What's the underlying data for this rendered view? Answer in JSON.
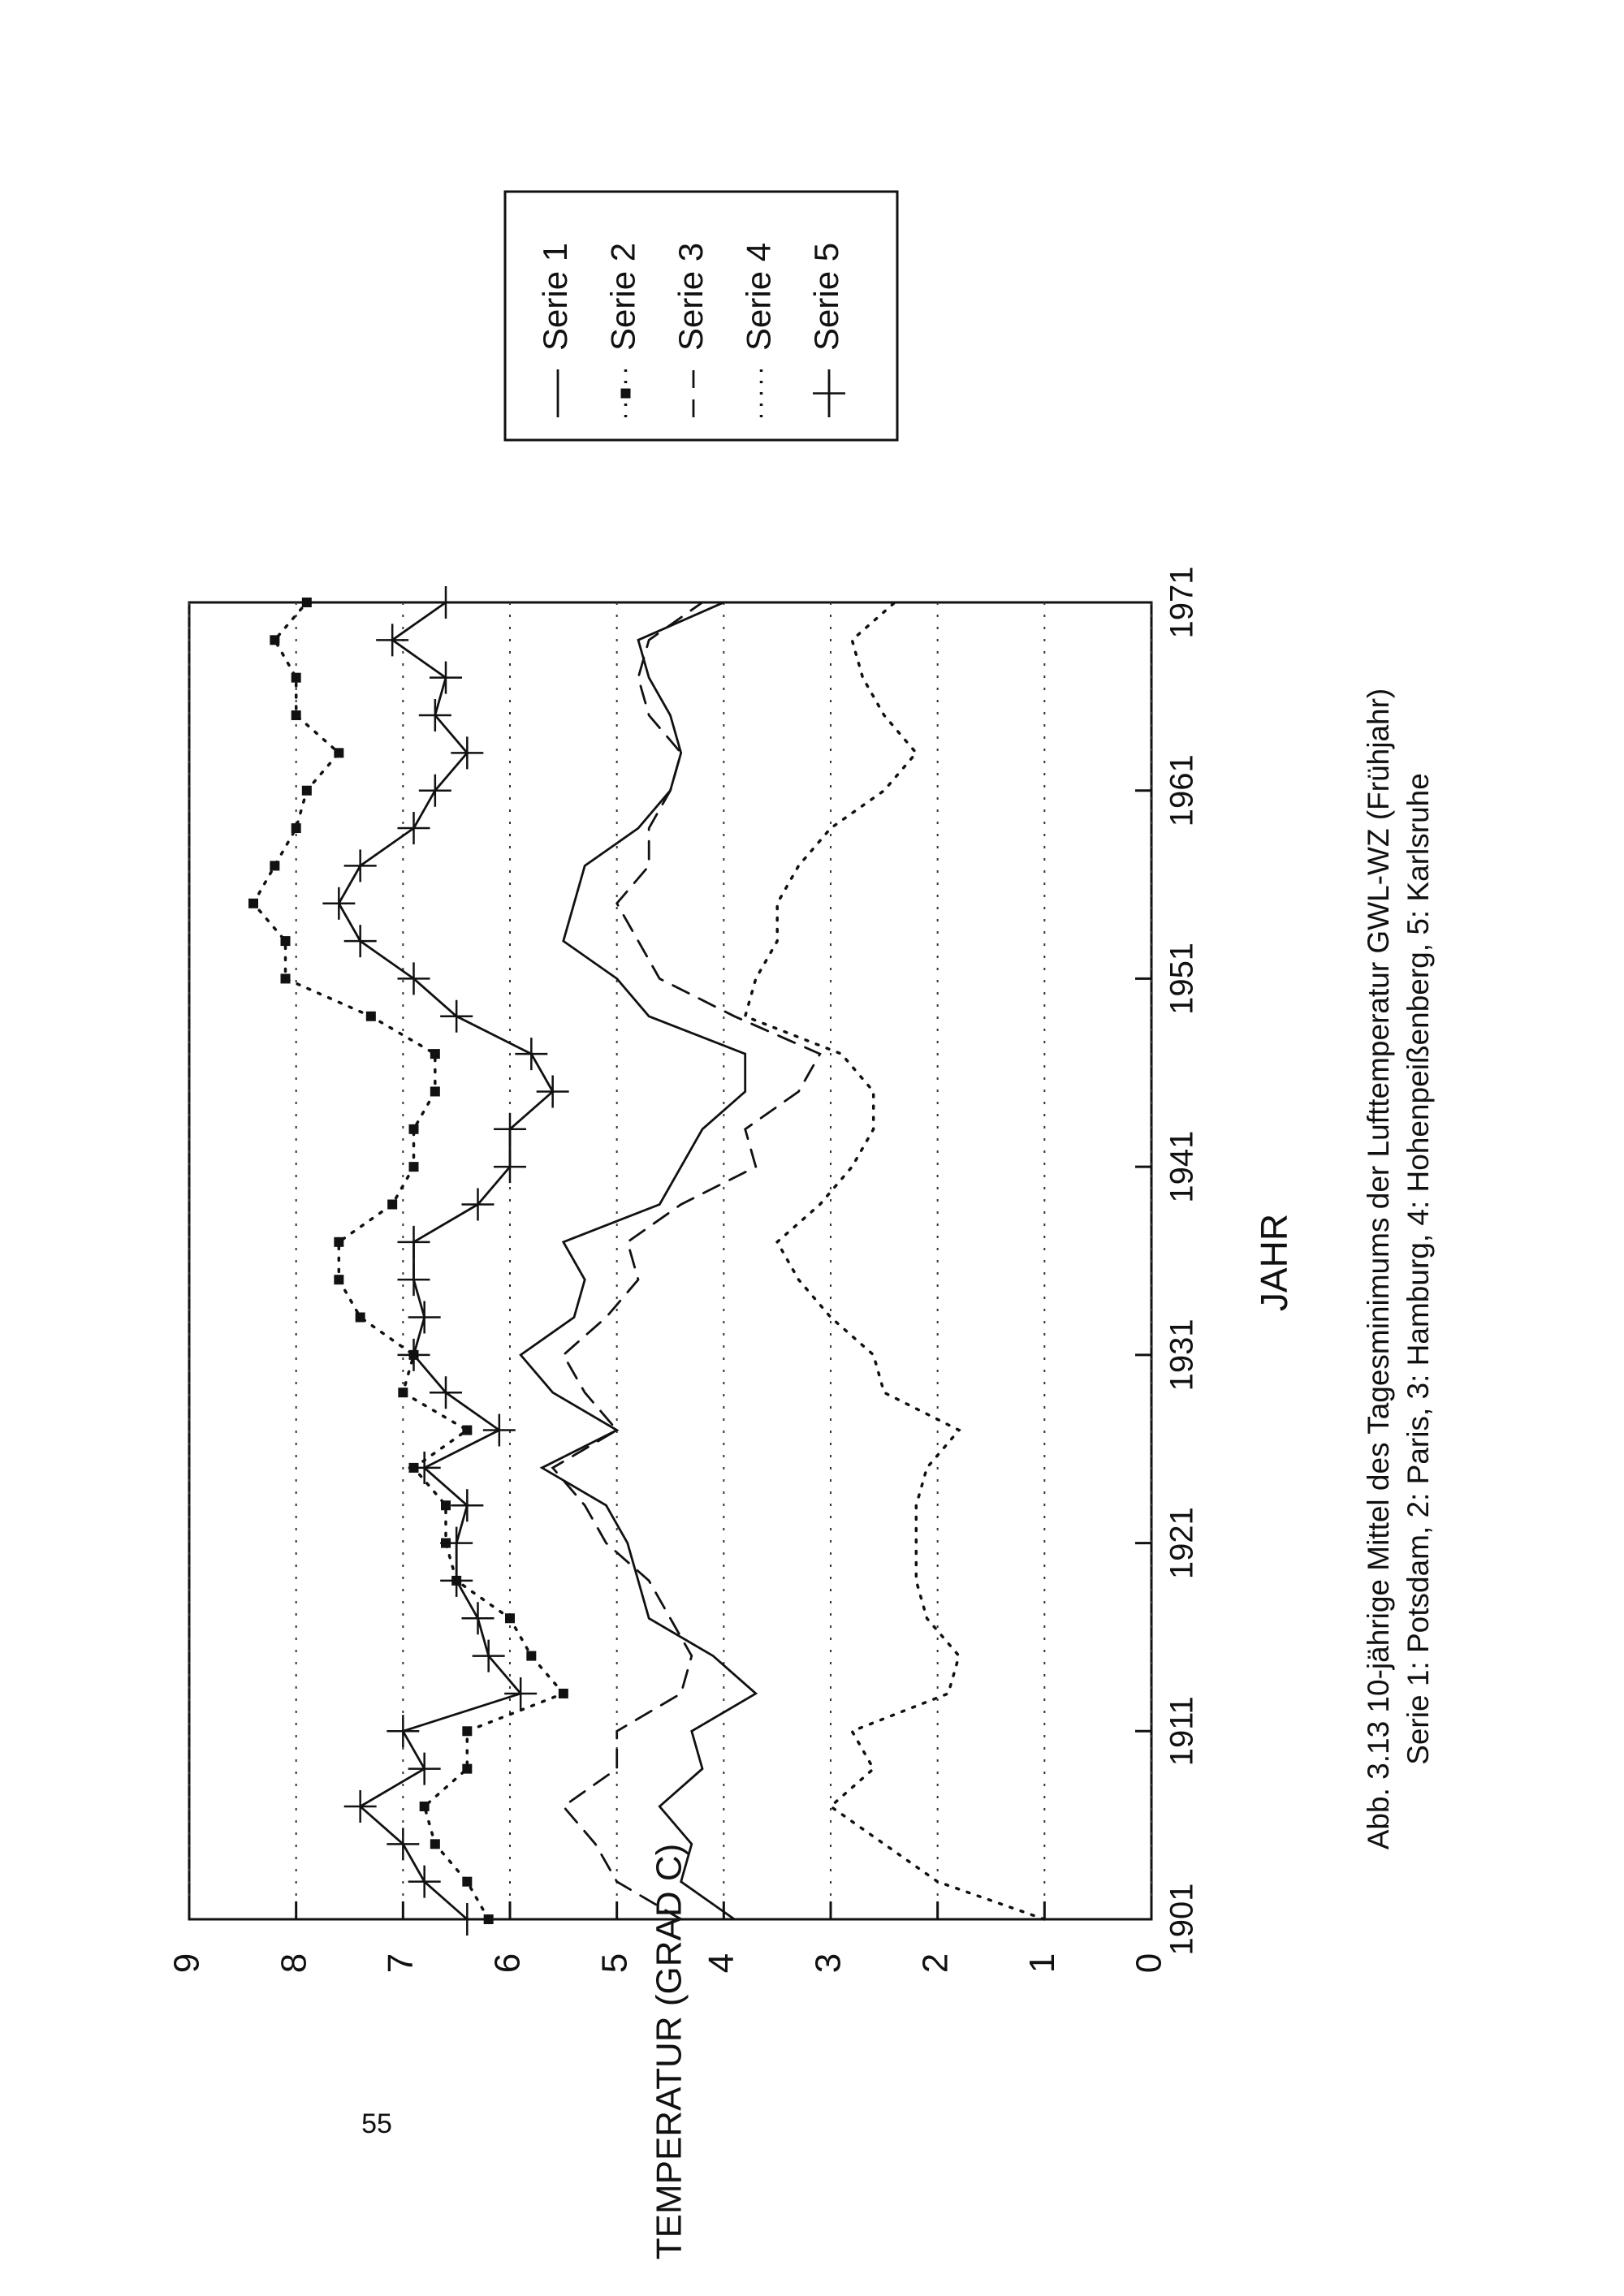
{
  "page_number": "55",
  "chart_data": {
    "type": "line",
    "title": "Abb. 3.13 10-jährige Mittel des Tagesminimums der Lufttemperatur GWL-WZ (Frühjahr)",
    "subtitle": "Serie 1: Potsdam, 2: Paris, 3: Hamburg, 4: Hohenpeißenberg, 5: Karlsruhe",
    "x_label": "JAHR",
    "y_label": "TEMPERATUR (GRAD C)",
    "x": [
      1901,
      1903,
      1905,
      1907,
      1909,
      1911,
      1913,
      1915,
      1917,
      1919,
      1921,
      1923,
      1925,
      1927,
      1929,
      1931,
      1933,
      1935,
      1937,
      1939,
      1941,
      1943,
      1945,
      1947,
      1949,
      1951,
      1953,
      1955,
      1957,
      1959,
      1961,
      1963,
      1965,
      1967,
      1969,
      1971
    ],
    "xlim": [
      1901,
      1971
    ],
    "xticks": [
      1901,
      1911,
      1921,
      1931,
      1941,
      1951,
      1961,
      1971
    ],
    "ylim": [
      0,
      9
    ],
    "yticks": [
      0,
      1,
      2,
      3,
      4,
      5,
      6,
      7,
      8,
      9
    ],
    "grid": true,
    "legend": "upper right",
    "series": [
      {
        "name": "Serie 1",
        "color": "#111111",
        "style": "solid",
        "marker": "none",
        "values": [
          3.9,
          4.4,
          4.3,
          4.6,
          4.2,
          4.3,
          3.7,
          4.1,
          4.7,
          4.8,
          4.9,
          5.1,
          5.7,
          5.0,
          5.6,
          5.9,
          5.4,
          5.3,
          5.5,
          4.6,
          4.4,
          4.2,
          3.8,
          3.8,
          4.7,
          5.0,
          5.5,
          5.4,
          5.3,
          4.8,
          4.5,
          4.4,
          4.5,
          4.7,
          4.8,
          4.0
        ]
      },
      {
        "name": "Serie 2",
        "color": "#111111",
        "style": "dotted",
        "marker": "square",
        "values": [
          6.2,
          6.4,
          6.7,
          6.8,
          6.4,
          6.4,
          5.5,
          5.8,
          6.0,
          6.5,
          6.6,
          6.6,
          6.9,
          6.4,
          7.0,
          6.9,
          7.4,
          7.6,
          7.6,
          7.1,
          6.9,
          6.9,
          6.7,
          6.7,
          7.3,
          8.1,
          8.1,
          8.4,
          8.2,
          8.0,
          7.9,
          7.6,
          8.0,
          8.0,
          8.2,
          7.9
        ]
      },
      {
        "name": "Serie 3",
        "color": "#111111",
        "style": "dashed",
        "marker": "none",
        "values": [
          4.4,
          5.0,
          5.2,
          5.5,
          5.0,
          5.0,
          4.4,
          4.3,
          4.5,
          4.7,
          5.1,
          5.3,
          5.6,
          5.0,
          5.3,
          5.5,
          5.1,
          4.8,
          4.9,
          4.4,
          3.7,
          3.8,
          3.3,
          3.1,
          3.9,
          4.6,
          4.8,
          5.0,
          4.7,
          4.7,
          4.5,
          4.4,
          4.7,
          4.8,
          4.7,
          4.2
        ]
      },
      {
        "name": "Serie 4",
        "color": "#111111",
        "style": "dotted",
        "marker": "none",
        "values": [
          1.0,
          2.0,
          2.5,
          3.0,
          2.6,
          2.8,
          1.9,
          1.8,
          2.1,
          2.2,
          2.2,
          2.2,
          2.1,
          1.8,
          2.5,
          2.6,
          3.0,
          3.3,
          3.5,
          3.1,
          2.8,
          2.6,
          2.6,
          2.9,
          3.8,
          3.7,
          3.5,
          3.5,
          3.3,
          3.0,
          2.5,
          2.2,
          2.5,
          2.7,
          2.8,
          2.4
        ]
      },
      {
        "name": "Serie 5",
        "color": "#111111",
        "style": "solid",
        "marker": "plus",
        "values": [
          6.4,
          6.8,
          7.0,
          7.4,
          6.8,
          7.0,
          5.9,
          6.2,
          6.3,
          6.5,
          6.5,
          6.4,
          6.8,
          6.1,
          6.6,
          6.9,
          6.8,
          6.9,
          6.9,
          6.3,
          6.0,
          6.0,
          5.6,
          5.8,
          6.5,
          6.9,
          7.4,
          7.6,
          7.4,
          6.9,
          6.7,
          6.4,
          6.7,
          6.6,
          7.1,
          6.6
        ]
      }
    ]
  }
}
